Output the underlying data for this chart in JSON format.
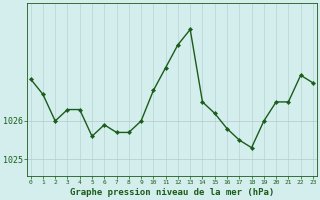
{
  "x": [
    0,
    1,
    2,
    3,
    4,
    5,
    6,
    7,
    8,
    9,
    10,
    11,
    12,
    13,
    14,
    15,
    16,
    17,
    18,
    19,
    20,
    21,
    22,
    23
  ],
  "y": [
    1027.1,
    1026.7,
    1026.0,
    1026.3,
    1026.3,
    1025.6,
    1025.9,
    1025.7,
    1025.7,
    1026.0,
    1026.8,
    1027.4,
    1028.0,
    1028.4,
    1026.5,
    1026.2,
    1025.8,
    1025.5,
    1025.3,
    1026.0,
    1026.5,
    1026.5,
    1027.2,
    1027.0
  ],
  "line_color": "#1a5c1a",
  "marker_color": "#1a5c1a",
  "bg_color": "#d4eeed",
  "plot_bg": "#d4eeed",
  "vgrid_color": "#b8d4d4",
  "hgrid_color": "#b8c8c8",
  "axis_color": "#1a5c1a",
  "ylabel_ticks": [
    1025,
    1026
  ],
  "ylim_min": 1024.55,
  "ylim_max": 1029.1,
  "xlabel": "Graphe pression niveau de la mer (hPa)",
  "xlabel_color": "#1a5c1a",
  "tick_label_color": "#1a5c1a",
  "xfontsize": 4.5,
  "yfontsize": 6.0,
  "xlabel_fontsize": 6.5,
  "linewidth": 1.0,
  "markersize": 2.2
}
